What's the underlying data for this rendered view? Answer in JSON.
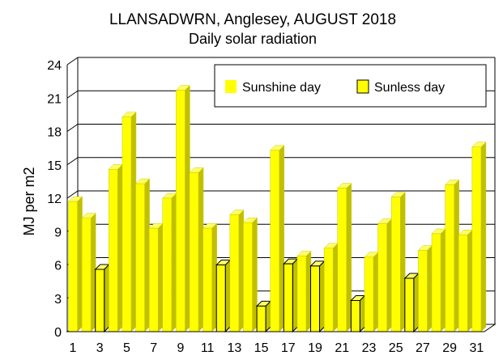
{
  "chart_data": {
    "type": "bar",
    "title": "LLANSADWRN, Anglesey, AUGUST 2018",
    "subtitle": "Daily solar radiation",
    "xlabel": "",
    "ylabel": "MJ per m2",
    "ylim": [
      0,
      24
    ],
    "yticks": [
      0,
      3,
      6,
      9,
      12,
      15,
      18,
      21,
      24
    ],
    "xtick_labels": [
      "1",
      "3",
      "5",
      "7",
      "9",
      "11",
      "13",
      "15",
      "17",
      "19",
      "21",
      "23",
      "25",
      "27",
      "29",
      "31"
    ],
    "grid": true,
    "legend_position": "top-right",
    "legend": [
      {
        "label": "Sunshine day",
        "color": "#ffff00"
      },
      {
        "label": "Sunless day",
        "color": "#ffff00",
        "outlined": true
      }
    ],
    "days": [
      1,
      2,
      3,
      4,
      5,
      6,
      7,
      8,
      9,
      10,
      11,
      12,
      13,
      14,
      15,
      16,
      17,
      18,
      19,
      20,
      21,
      22,
      23,
      24,
      25,
      26,
      27,
      28,
      29,
      30,
      31
    ],
    "values": [
      11.7,
      10.2,
      5.6,
      14.6,
      19.3,
      13.3,
      9.3,
      12.0,
      21.7,
      14.3,
      9.3,
      6.0,
      10.5,
      9.8,
      2.3,
      16.3,
      6.1,
      6.8,
      5.9,
      7.5,
      12.9,
      2.8,
      6.7,
      9.7,
      12.1,
      4.8,
      7.3,
      8.8,
      13.2,
      8.7,
      16.6
    ],
    "sunless": [
      3,
      12,
      15,
      17,
      19,
      22,
      26
    ]
  }
}
